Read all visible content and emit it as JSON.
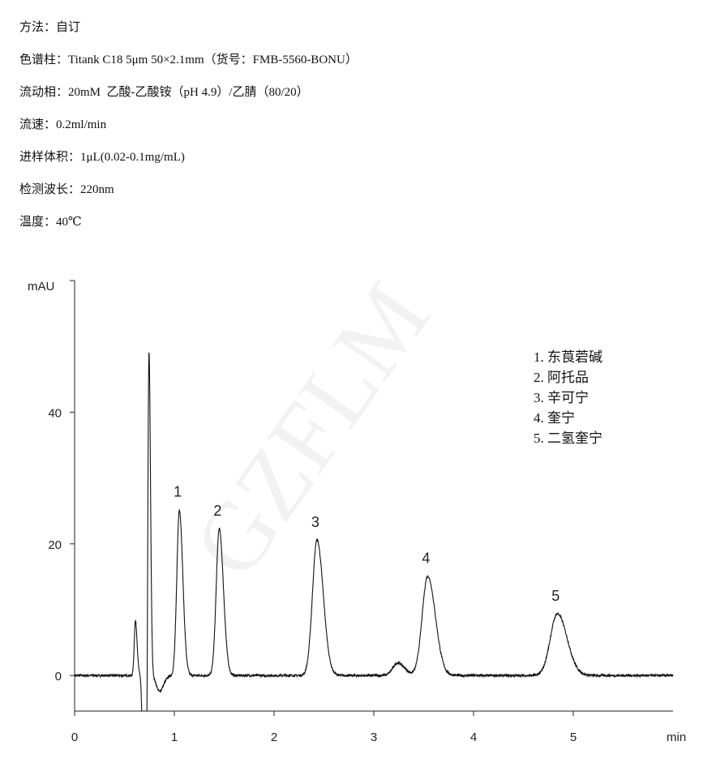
{
  "method": {
    "lines": [
      "方法：自订",
      "色谱柱：Titank C18 5μm 50×2.1mm（货号：FMB-5560-BONU）",
      "流动相：20mM  乙酸-乙酸铵（pH 4.9）/乙腈（80/20）",
      "流速：0.2ml/min",
      "进样体积：1μL(0.02-0.1mg/mL)",
      "检测波长：220nm",
      "温度：40℃"
    ]
  },
  "watermark": "GZFLM",
  "chart_data": {
    "type": "line",
    "xlabel": "min",
    "ylabel": "mAU",
    "xlim": [
      0,
      6
    ],
    "ylim": [
      -5.4,
      60
    ],
    "xticks": [
      "0",
      "1",
      "2",
      "3",
      "4",
      "5"
    ],
    "yticks": [
      "0",
      "20",
      "40"
    ],
    "grid": false,
    "line_color": "#111111",
    "peaks": [
      {
        "label": "",
        "rt": 0.61,
        "height": 8.3,
        "sigma": 0.012
      },
      {
        "label": "",
        "rt": 0.7,
        "height": -40,
        "sigma": 0.014
      },
      {
        "label": "",
        "rt": 0.745,
        "height": 51.7,
        "sigma": 0.011
      },
      {
        "label": "",
        "rt": 0.85,
        "height": -2.4,
        "sigma": 0.03
      },
      {
        "label": "1",
        "rt": 1.05,
        "height": 25.2,
        "sigma": 0.025
      },
      {
        "label": "2",
        "rt": 1.45,
        "height": 22.3,
        "sigma": 0.03
      },
      {
        "label": "3",
        "rt": 2.43,
        "height": 20.6,
        "sigma": 0.045
      },
      {
        "label": "",
        "rt": 3.24,
        "height": 1.9,
        "sigma": 0.05
      },
      {
        "label": "4",
        "rt": 3.54,
        "height": 15.1,
        "sigma": 0.055
      },
      {
        "label": "5",
        "rt": 4.84,
        "height": 9.4,
        "sigma": 0.07
      }
    ],
    "legend": {
      "placement": "top-right",
      "entries": [
        "1. 东莨菪碱",
        "2. 阿托品",
        "3. 辛可宁",
        "4. 奎宁",
        "5. 二氢奎宁"
      ]
    }
  }
}
